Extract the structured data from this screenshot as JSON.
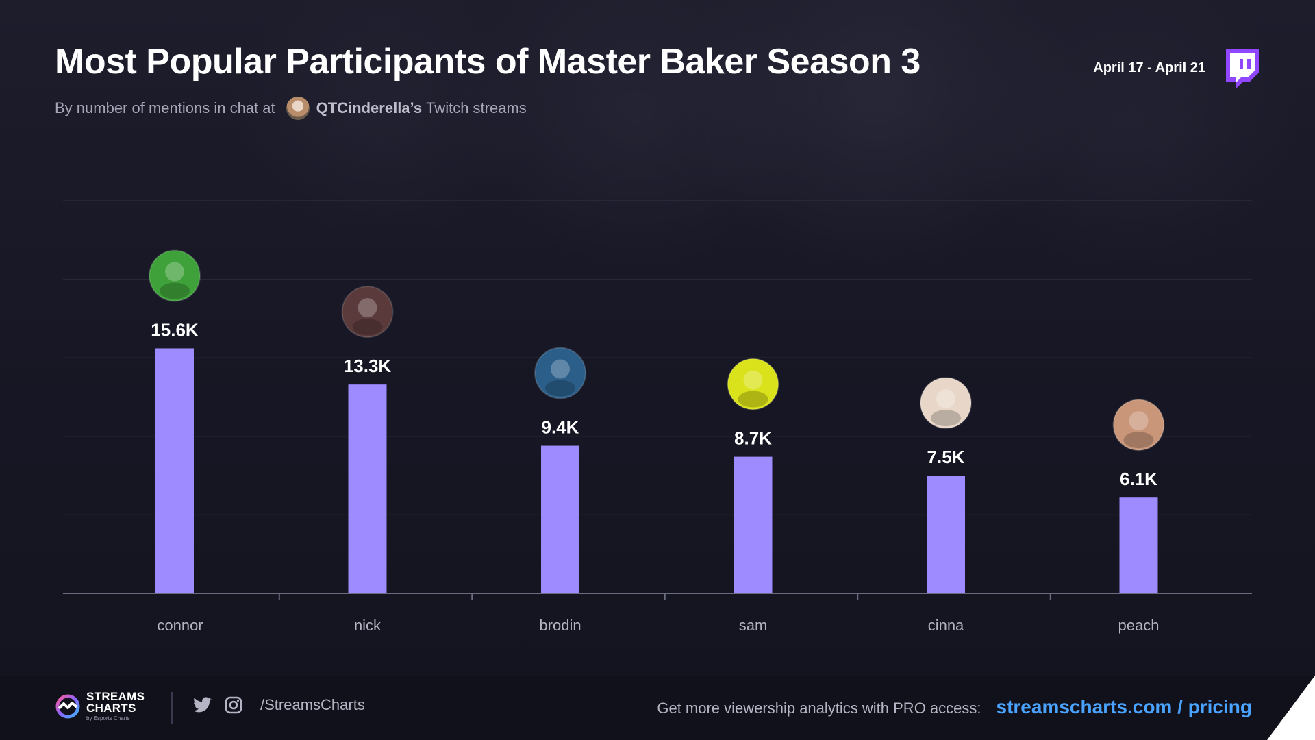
{
  "header": {
    "title": "Most Popular Participants of Master Baker Season 3",
    "subtitle_prefix": "By number of mentions in chat at",
    "channel": "QTCinderella’s",
    "subtitle_suffix": "Twitch streams",
    "date_range": "April 17 - April 21"
  },
  "chart_data": {
    "type": "bar",
    "categories": [
      "connor",
      "nick",
      "brodin",
      "sam",
      "cinna",
      "peach"
    ],
    "values": [
      15600,
      13300,
      9400,
      8700,
      7500,
      6100
    ],
    "data_labels": [
      "15.6K",
      "13.3K",
      "9.4K",
      "8.7K",
      "7.5K",
      "6.1K"
    ],
    "ylim": [
      0,
      25000
    ],
    "grid": true,
    "bar_color": "#9d8bff",
    "avatar_colors": [
      "#3fa13a",
      "#5a3a3a",
      "#2b5f8a",
      "#d9e21a",
      "#e8d7c9",
      "#c9967a"
    ]
  },
  "footer": {
    "brand_line1": "STREAMS",
    "brand_line2": "CHARTS",
    "brand_line3": "by Esports Charts",
    "social_handle": "/StreamsCharts",
    "promo_text": "Get more viewership analytics with PRO access:",
    "promo_link": "streamscharts.com / pricing"
  },
  "colors": {
    "background": "#161623",
    "accent_twitch": "#9146ff",
    "link": "#4aa3ff"
  }
}
